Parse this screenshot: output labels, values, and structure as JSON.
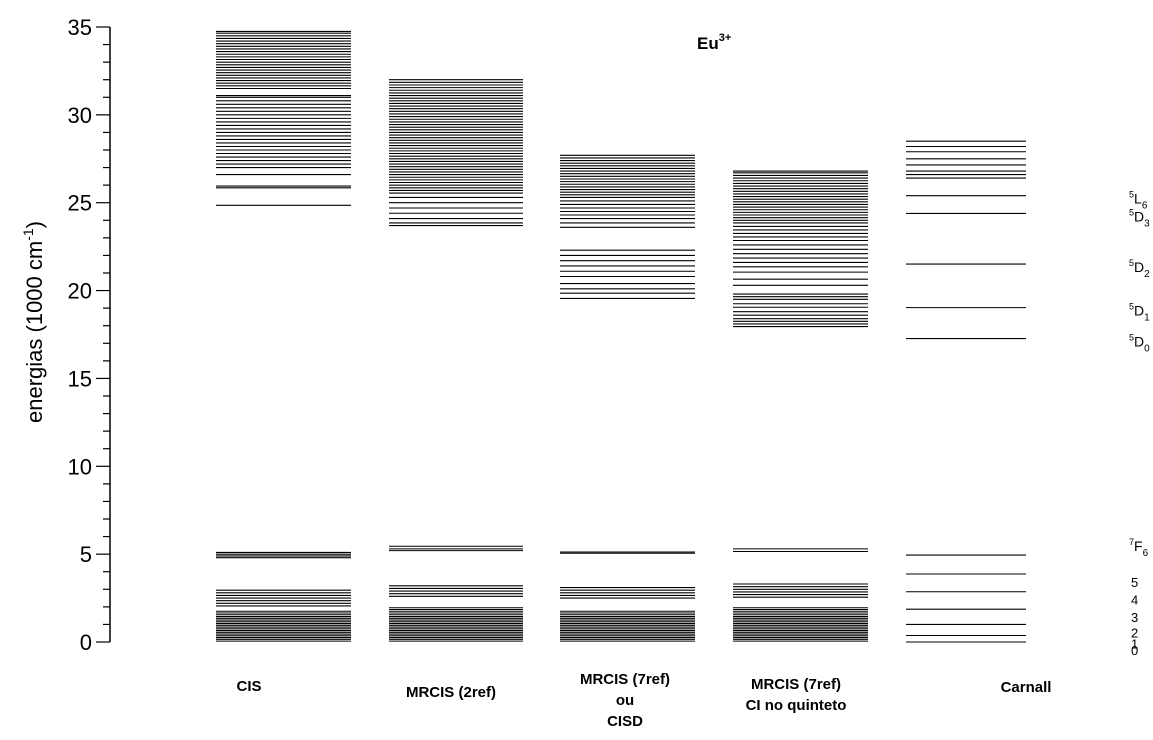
{
  "chart_data": {
    "type": "energy-level diagram",
    "title": "Eu",
    "title_superscript": "3+",
    "ylabel": "energias  (1000 cm",
    "ylabel_superscript": "-1",
    "ylabel_close": ")",
    "ylim": [
      0,
      35
    ],
    "yticks": [
      0,
      5,
      10,
      15,
      20,
      25,
      30,
      35
    ],
    "ytick_labels": [
      "0",
      "5",
      "10",
      "15",
      "20",
      "25",
      "30",
      "35"
    ],
    "y_minor_step": 1,
    "grid": false,
    "series": [
      {
        "name_lines": [
          "CIS"
        ],
        "levels": [
          0.05,
          0.15,
          0.25,
          0.35,
          0.45,
          0.55,
          0.65,
          0.75,
          0.85,
          0.95,
          1.05,
          1.15,
          1.25,
          1.35,
          1.45,
          1.55,
          1.65,
          1.75,
          2.05,
          2.2,
          2.35,
          2.5,
          2.65,
          2.8,
          2.95,
          4.8,
          4.9,
          5.0,
          5.1,
          24.85,
          25.85,
          25.95,
          26.6,
          27.0,
          27.2,
          27.4,
          27.6,
          27.8,
          28.0,
          28.2,
          28.4,
          28.6,
          28.8,
          29.0,
          29.2,
          29.4,
          29.6,
          29.8,
          30.0,
          30.2,
          30.4,
          30.6,
          30.8,
          31.0,
          31.1,
          31.5,
          31.65,
          31.8,
          31.95,
          32.1,
          32.25,
          32.4,
          32.55,
          32.7,
          32.85,
          33.0,
          33.15,
          33.3,
          33.45,
          33.6,
          33.75,
          33.9,
          34.05,
          34.2,
          34.35,
          34.5,
          34.65,
          34.75
        ]
      },
      {
        "name_lines": [
          "MRCIS (2ref)"
        ],
        "levels": [
          0.05,
          0.15,
          0.25,
          0.35,
          0.45,
          0.55,
          0.65,
          0.75,
          0.85,
          0.95,
          1.05,
          1.15,
          1.25,
          1.35,
          1.45,
          1.55,
          1.65,
          1.75,
          1.85,
          1.95,
          2.6,
          2.75,
          2.9,
          3.05,
          3.2,
          5.2,
          5.3,
          5.45,
          23.7,
          23.85,
          24.1,
          24.4,
          24.7,
          25.0,
          25.3,
          25.55,
          25.7,
          25.85,
          26.0,
          26.15,
          26.3,
          26.45,
          26.6,
          26.75,
          26.9,
          27.05,
          27.2,
          27.35,
          27.5,
          27.65,
          27.8,
          27.95,
          28.1,
          28.25,
          28.4,
          28.55,
          28.7,
          28.85,
          29.0,
          29.15,
          29.3,
          29.45,
          29.6,
          29.75,
          29.9,
          30.05,
          30.2,
          30.35,
          30.5,
          30.65,
          30.8,
          30.95,
          31.1,
          31.25,
          31.4,
          31.55,
          31.7,
          31.85,
          32.0
        ]
      },
      {
        "name_lines": [
          "MRCIS (7ref)",
          "ou",
          "CISD"
        ],
        "levels": [
          0.05,
          0.15,
          0.25,
          0.35,
          0.45,
          0.55,
          0.65,
          0.75,
          0.85,
          0.95,
          1.05,
          1.15,
          1.25,
          1.35,
          1.45,
          1.55,
          1.65,
          1.75,
          2.5,
          2.65,
          2.8,
          2.95,
          3.1,
          5.05,
          5.12,
          19.55,
          19.85,
          20.1,
          20.4,
          20.8,
          21.1,
          21.4,
          21.7,
          22.0,
          22.3,
          23.6,
          23.85,
          24.1,
          24.3,
          24.5,
          24.7,
          24.9,
          25.1,
          25.3,
          25.45,
          25.6,
          25.75,
          25.9,
          26.05,
          26.2,
          26.35,
          26.5,
          26.65,
          26.8,
          26.95,
          27.1,
          27.25,
          27.4,
          27.55,
          27.7
        ]
      },
      {
        "name_lines": [
          "MRCIS (7ref)",
          "CI no quinteto"
        ],
        "levels": [
          0.05,
          0.15,
          0.25,
          0.35,
          0.45,
          0.55,
          0.65,
          0.75,
          0.85,
          0.95,
          1.05,
          1.15,
          1.25,
          1.35,
          1.45,
          1.55,
          1.65,
          1.75,
          1.85,
          1.95,
          2.55,
          2.7,
          2.85,
          3.0,
          3.15,
          3.3,
          5.15,
          5.3,
          17.95,
          18.1,
          18.25,
          18.4,
          18.6,
          18.8,
          19.05,
          19.25,
          19.5,
          19.65,
          19.8,
          20.3,
          20.65,
          21.05,
          21.35,
          21.6,
          21.85,
          22.1,
          22.35,
          22.6,
          22.85,
          23.05,
          23.25,
          23.45,
          23.65,
          23.85,
          24.0,
          24.15,
          24.3,
          24.45,
          24.6,
          24.75,
          24.9,
          25.05,
          25.2,
          25.35,
          25.5,
          25.65,
          25.8,
          25.95,
          26.1,
          26.25,
          26.4,
          26.55,
          26.7,
          26.8
        ]
      },
      {
        "name_lines": [
          "Carnall"
        ],
        "levels": [
          0.0,
          0.37,
          1.0,
          1.87,
          2.86,
          3.87,
          4.95,
          17.27,
          19.03,
          21.51,
          24.39,
          25.4,
          26.4,
          26.6,
          26.8,
          27.15,
          27.5,
          27.9,
          28.2,
          28.5
        ]
      }
    ],
    "annotations": [
      {
        "y": 25.4,
        "main": "L",
        "super": "5",
        "sub": "6"
      },
      {
        "y": 24.39,
        "main": "D",
        "super": "5",
        "sub": "3"
      },
      {
        "y": 21.51,
        "main": "D",
        "super": "5",
        "sub": "2"
      },
      {
        "y": 19.03,
        "main": "D",
        "super": "5",
        "sub": "1"
      },
      {
        "y": 17.27,
        "main": "D",
        "super": "5",
        "sub": "0"
      },
      {
        "y": 4.95,
        "main": "F",
        "super": "7",
        "sub": "6"
      }
    ],
    "f_labels": [
      {
        "y": 0.0,
        "text": "0"
      },
      {
        "y": 0.37,
        "text": "1"
      },
      {
        "y": 1.0,
        "text": "2"
      },
      {
        "y": 1.87,
        "text": "3"
      },
      {
        "y": 2.86,
        "text": "4"
      },
      {
        "y": 3.87,
        "text": "5"
      }
    ]
  }
}
